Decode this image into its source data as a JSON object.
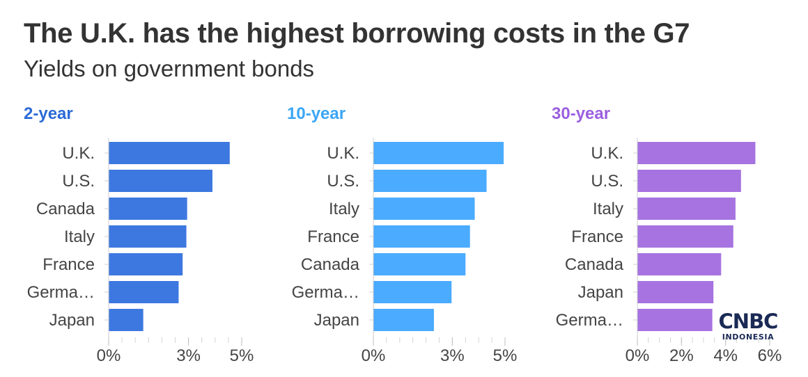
{
  "title": "The U.K. has the highest borrowing costs in the G7",
  "subtitle": "Yields on government bonds",
  "chart_data": [
    {
      "type": "bar",
      "orientation": "horizontal",
      "title": "2-year",
      "color": "#3d78e0",
      "categories": [
        "U.K.",
        "U.S.",
        "Canada",
        "Italy",
        "France",
        "Germa…",
        "Japan"
      ],
      "values": [
        4.55,
        3.9,
        2.95,
        2.92,
        2.78,
        2.63,
        1.3
      ],
      "xlim": [
        0,
        5
      ],
      "ticks": [
        {
          "value": 0,
          "label": "0%"
        },
        {
          "value": 3,
          "label": "3%"
        },
        {
          "value": 5,
          "label": "5%"
        }
      ]
    },
    {
      "type": "bar",
      "orientation": "horizontal",
      "title": "10-year",
      "color": "#4aabff",
      "categories": [
        "U.K.",
        "U.S.",
        "Italy",
        "France",
        "Canada",
        "Germa…",
        "Japan"
      ],
      "values": [
        4.95,
        4.3,
        3.85,
        3.67,
        3.5,
        2.97,
        2.3
      ],
      "xlim": [
        0,
        5
      ],
      "ticks": [
        {
          "value": 0,
          "label": "0%"
        },
        {
          "value": 3,
          "label": "3%"
        },
        {
          "value": 5,
          "label": "5%"
        }
      ]
    },
    {
      "type": "bar",
      "orientation": "horizontal",
      "title": "30-year",
      "color": "#a673e0",
      "categories": [
        "U.K.",
        "U.S.",
        "Italy",
        "France",
        "Canada",
        "Japan",
        "Germa…"
      ],
      "values": [
        5.35,
        4.7,
        4.45,
        4.35,
        3.8,
        3.45,
        3.4
      ],
      "xlim": [
        0,
        6
      ],
      "ticks": [
        {
          "value": 0,
          "label": "0%"
        },
        {
          "value": 2,
          "label": "2%"
        },
        {
          "value": 4,
          "label": "4%"
        },
        {
          "value": 6,
          "label": "6%"
        }
      ]
    }
  ],
  "logo": {
    "main": "CNBC",
    "sub": "INDONESIA"
  }
}
